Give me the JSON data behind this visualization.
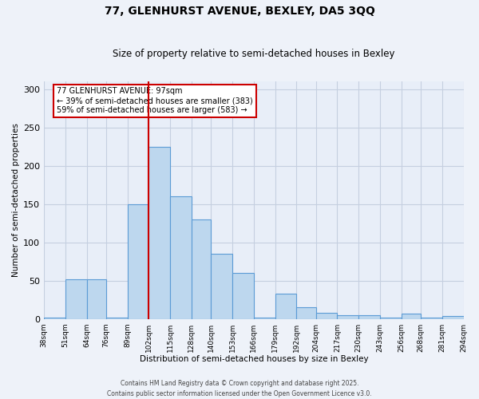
{
  "title": "77, GLENHURST AVENUE, BEXLEY, DA5 3QQ",
  "subtitle": "Size of property relative to semi-detached houses in Bexley",
  "xlabel": "Distribution of semi-detached houses by size in Bexley",
  "ylabel": "Number of semi-detached properties",
  "bar_edges": [
    38,
    51,
    64,
    76,
    89,
    102,
    115,
    128,
    140,
    153,
    166,
    179,
    192,
    204,
    217,
    230,
    243,
    256,
    268,
    281,
    294
  ],
  "bar_heights": [
    2,
    52,
    52,
    2,
    150,
    225,
    160,
    130,
    85,
    60,
    2,
    33,
    15,
    8,
    5,
    5,
    2,
    7,
    2,
    4,
    2
  ],
  "bar_color": "#bdd7ee",
  "bar_edge_color": "#5b9bd5",
  "vline_x": 102,
  "vline_color": "#cc0000",
  "annotation_title": "77 GLENHURST AVENUE: 97sqm",
  "annotation_line1": "← 39% of semi-detached houses are smaller (383)",
  "annotation_line2": "59% of semi-detached houses are larger (583) →",
  "annotation_box_color": "#cc0000",
  "xlim": [
    38,
    294
  ],
  "ylim": [
    0,
    310
  ],
  "yticks": [
    0,
    50,
    100,
    150,
    200,
    250,
    300
  ],
  "xtick_labels": [
    "38sqm",
    "51sqm",
    "64sqm",
    "76sqm",
    "89sqm",
    "102sqm",
    "115sqm",
    "128sqm",
    "140sqm",
    "153sqm",
    "166sqm",
    "179sqm",
    "192sqm",
    "204sqm",
    "217sqm",
    "230sqm",
    "243sqm",
    "256sqm",
    "268sqm",
    "281sqm",
    "294sqm"
  ],
  "footer1": "Contains HM Land Registry data © Crown copyright and database right 2025.",
  "footer2": "Contains public sector information licensed under the Open Government Licence v3.0.",
  "background_color": "#eef2f9",
  "plot_bg_color": "#e8eef8",
  "grid_color": "#c5cfe0"
}
